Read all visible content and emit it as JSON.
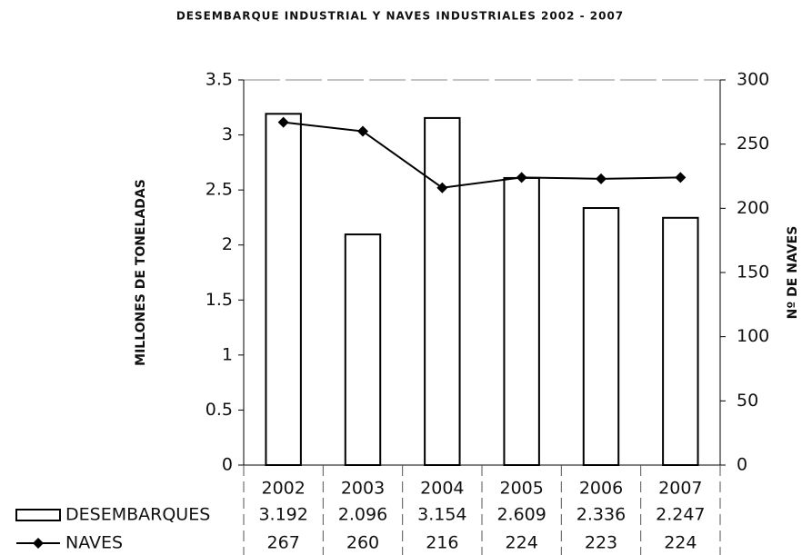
{
  "chart_data": {
    "type": "bar_line",
    "title": "DESEMBARQUE INDUSTRIAL Y NAVES INDUSTRIALES 2002 - 2007",
    "y_label": "MILLONES DE TONELADAS",
    "y2_label": "Nº DE NAVES",
    "categories": [
      "2002",
      "2003",
      "2004",
      "2005",
      "2006",
      "2007"
    ],
    "series": [
      {
        "name": "DESEMBARQUES",
        "type": "bar",
        "color": "#ffffff",
        "values": [
          3.192,
          2.096,
          3.154,
          2.609,
          2.336,
          2.247
        ]
      },
      {
        "name": "NAVES",
        "type": "line",
        "axis": "y2",
        "color": "#000000",
        "values": [
          267,
          260,
          216,
          224,
          223,
          224
        ]
      }
    ],
    "ylim": [
      0,
      3.5
    ],
    "yticks": [
      0,
      0.5,
      1,
      1.5,
      2,
      2.5,
      3,
      3.5
    ],
    "y2lim": [
      0,
      300
    ],
    "y2ticks": [
      0,
      50,
      100,
      150,
      200,
      250,
      300
    ]
  }
}
